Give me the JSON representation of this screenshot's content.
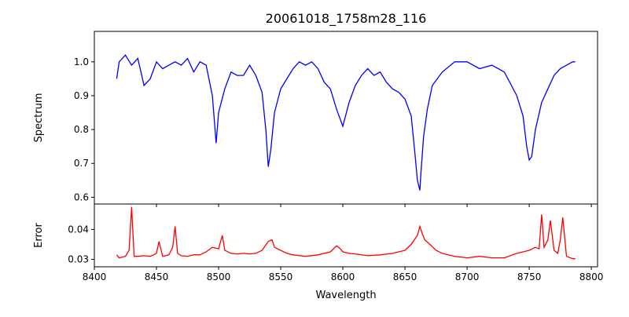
{
  "chart_data": [
    {
      "type": "line",
      "title": "20061018_1758m28_116",
      "xlabel": "",
      "ylabel": "Spectrum",
      "xlim": [
        8400,
        8805
      ],
      "ylim": [
        0.58,
        1.09
      ],
      "yticks": [
        "0.6",
        "0.7",
        "0.8",
        "0.9",
        "1.0"
      ],
      "grid": false,
      "series": [
        {
          "color": "#0000ff",
          "x": [
            8418,
            8420,
            8425,
            8430,
            8435,
            8440,
            8445,
            8450,
            8455,
            8460,
            8465,
            8470,
            8475,
            8480,
            8485,
            8490,
            8495,
            8498,
            8500,
            8505,
            8510,
            8515,
            8520,
            8525,
            8530,
            8535,
            8538,
            8540,
            8542,
            8545,
            8550,
            8555,
            8560,
            8565,
            8570,
            8575,
            8580,
            8585,
            8590,
            8595,
            8600,
            8605,
            8610,
            8615,
            8620,
            8625,
            8630,
            8635,
            8640,
            8645,
            8650,
            8655,
            8658,
            8660,
            8662,
            8663,
            8665,
            8668,
            8672,
            8680,
            8690,
            8700,
            8710,
            8720,
            8730,
            8740,
            8745,
            8748,
            8750,
            8752,
            8755,
            8760,
            8765,
            8770,
            8775,
            8780,
            8785,
            8787
          ],
          "y": [
            0.95,
            1.0,
            1.02,
            0.99,
            1.01,
            0.93,
            0.95,
            1.0,
            0.98,
            0.99,
            1.0,
            0.99,
            1.01,
            0.97,
            1.0,
            0.99,
            0.9,
            0.76,
            0.85,
            0.92,
            0.97,
            0.96,
            0.96,
            0.99,
            0.96,
            0.91,
            0.8,
            0.69,
            0.74,
            0.85,
            0.92,
            0.95,
            0.98,
            1.0,
            0.99,
            1.0,
            0.98,
            0.94,
            0.92,
            0.86,
            0.81,
            0.88,
            0.93,
            0.96,
            0.98,
            0.96,
            0.97,
            0.94,
            0.92,
            0.91,
            0.89,
            0.84,
            0.73,
            0.65,
            0.62,
            0.68,
            0.78,
            0.86,
            0.93,
            0.97,
            1.0,
            1.0,
            0.98,
            0.99,
            0.97,
            0.9,
            0.84,
            0.75,
            0.71,
            0.72,
            0.8,
            0.88,
            0.92,
            0.96,
            0.98,
            0.99,
            1.0,
            1.0
          ]
        }
      ]
    },
    {
      "type": "line",
      "title": "",
      "xlabel": "Wavelength",
      "ylabel": "Error",
      "xlim": [
        8400,
        8805
      ],
      "ylim": [
        0.0275,
        0.0485
      ],
      "xticks": [
        "8400",
        "8450",
        "8500",
        "8550",
        "8600",
        "8650",
        "8700",
        "8750",
        "8800"
      ],
      "yticks": [
        "0.03",
        "0.04"
      ],
      "grid": false,
      "series": [
        {
          "color": "#ff0000",
          "x": [
            8418,
            8420,
            8425,
            8428,
            8430,
            8432,
            8435,
            8440,
            8445,
            8450,
            8452,
            8455,
            8460,
            8463,
            8465,
            8467,
            8470,
            8475,
            8480,
            8485,
            8490,
            8495,
            8500,
            8503,
            8505,
            8510,
            8515,
            8520,
            8525,
            8530,
            8535,
            8540,
            8543,
            8545,
            8550,
            8555,
            8560,
            8570,
            8580,
            8590,
            8595,
            8598,
            8600,
            8605,
            8610,
            8620,
            8630,
            8640,
            8650,
            8655,
            8660,
            8662,
            8664,
            8666,
            8670,
            8675,
            8680,
            8690,
            8700,
            8710,
            8720,
            8730,
            8740,
            8745,
            8750,
            8755,
            8758,
            8760,
            8762,
            8765,
            8767,
            8770,
            8773,
            8775,
            8777,
            8780,
            8785,
            8787
          ],
          "y": [
            0.0315,
            0.0305,
            0.031,
            0.033,
            0.0475,
            0.031,
            0.031,
            0.0312,
            0.031,
            0.032,
            0.036,
            0.031,
            0.0315,
            0.034,
            0.041,
            0.032,
            0.0312,
            0.031,
            0.0315,
            0.0315,
            0.0325,
            0.034,
            0.0335,
            0.038,
            0.033,
            0.032,
            0.0318,
            0.032,
            0.0318,
            0.032,
            0.033,
            0.036,
            0.0365,
            0.034,
            0.033,
            0.032,
            0.0315,
            0.031,
            0.0315,
            0.0325,
            0.0345,
            0.0335,
            0.0325,
            0.032,
            0.0318,
            0.0312,
            0.0315,
            0.032,
            0.033,
            0.035,
            0.038,
            0.041,
            0.0385,
            0.0365,
            0.035,
            0.033,
            0.032,
            0.031,
            0.0305,
            0.031,
            0.0305,
            0.0305,
            0.032,
            0.0325,
            0.033,
            0.034,
            0.0335,
            0.045,
            0.034,
            0.0365,
            0.043,
            0.033,
            0.032,
            0.0365,
            0.044,
            0.031,
            0.0302,
            0.0302
          ]
        }
      ]
    }
  ]
}
